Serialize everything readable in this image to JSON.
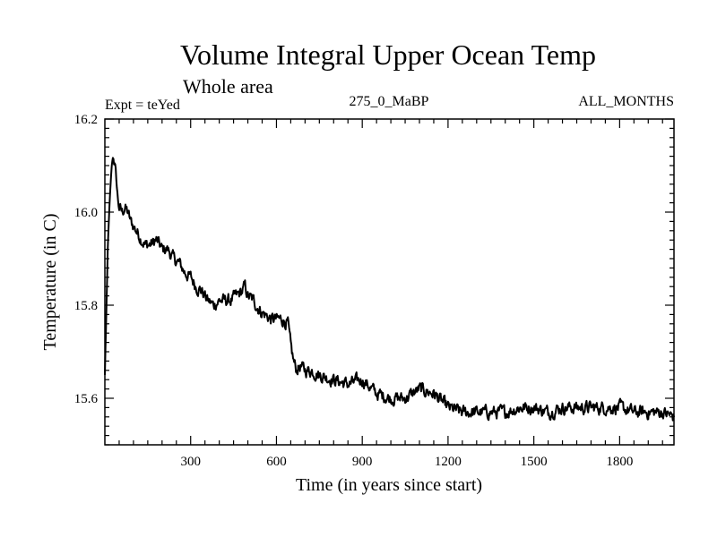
{
  "chart_data": {
    "type": "line",
    "title": "Volume Integral Upper Ocean Temp",
    "subtitle": "Whole area",
    "left_note": "Expt = teYed",
    "center_note": "275_0_MaBP",
    "right_note": "ALL_MONTHS",
    "xlabel": "Time (in years since start)",
    "ylabel": "Temperature (in C)",
    "xlim": [
      0,
      1990
    ],
    "ylim": [
      15.5,
      16.2
    ],
    "xticks": [
      300,
      600,
      900,
      1200,
      1500,
      1800
    ],
    "xtick_labels": [
      "300",
      "600",
      "900",
      "1200",
      "1500",
      "1800"
    ],
    "yticks": [
      15.6,
      15.8,
      16.0,
      16.2
    ],
    "ytick_labels": [
      "15.6",
      "15.8",
      "16.0",
      "16.2"
    ],
    "series": [
      {
        "name": "Temperature",
        "x": [
          0,
          5,
          10,
          15,
          20,
          25,
          30,
          35,
          40,
          45,
          50,
          60,
          70,
          80,
          90,
          100,
          120,
          140,
          160,
          180,
          200,
          220,
          240,
          260,
          280,
          300,
          320,
          340,
          360,
          380,
          400,
          420,
          440,
          460,
          480,
          490,
          500,
          520,
          540,
          560,
          580,
          600,
          620,
          640,
          650,
          660,
          670,
          680,
          700,
          720,
          750,
          800,
          850,
          900,
          950,
          1000,
          1050,
          1100,
          1150,
          1200,
          1250,
          1300,
          1350,
          1400,
          1450,
          1500,
          1550,
          1600,
          1650,
          1700,
          1750,
          1800,
          1850,
          1900,
          1950,
          1990
        ],
        "values": [
          15.65,
          15.78,
          15.92,
          16.0,
          16.06,
          16.11,
          16.12,
          16.1,
          16.07,
          16.03,
          16.01,
          16.0,
          16.01,
          16.0,
          15.98,
          15.97,
          15.95,
          15.93,
          15.93,
          15.94,
          15.92,
          15.92,
          15.9,
          15.89,
          15.87,
          15.86,
          15.84,
          15.83,
          15.81,
          15.8,
          15.81,
          15.81,
          15.81,
          15.82,
          15.83,
          15.84,
          15.82,
          15.81,
          15.79,
          15.78,
          15.77,
          15.77,
          15.77,
          15.76,
          15.71,
          15.68,
          15.66,
          15.67,
          15.66,
          15.66,
          15.65,
          15.64,
          15.63,
          15.64,
          15.61,
          15.6,
          15.6,
          15.62,
          15.61,
          15.58,
          15.57,
          15.57,
          15.57,
          15.57,
          15.58,
          15.58,
          15.57,
          15.58,
          15.58,
          15.58,
          15.58,
          15.58,
          15.57,
          15.57,
          15.57,
          15.56
        ]
      }
    ]
  }
}
